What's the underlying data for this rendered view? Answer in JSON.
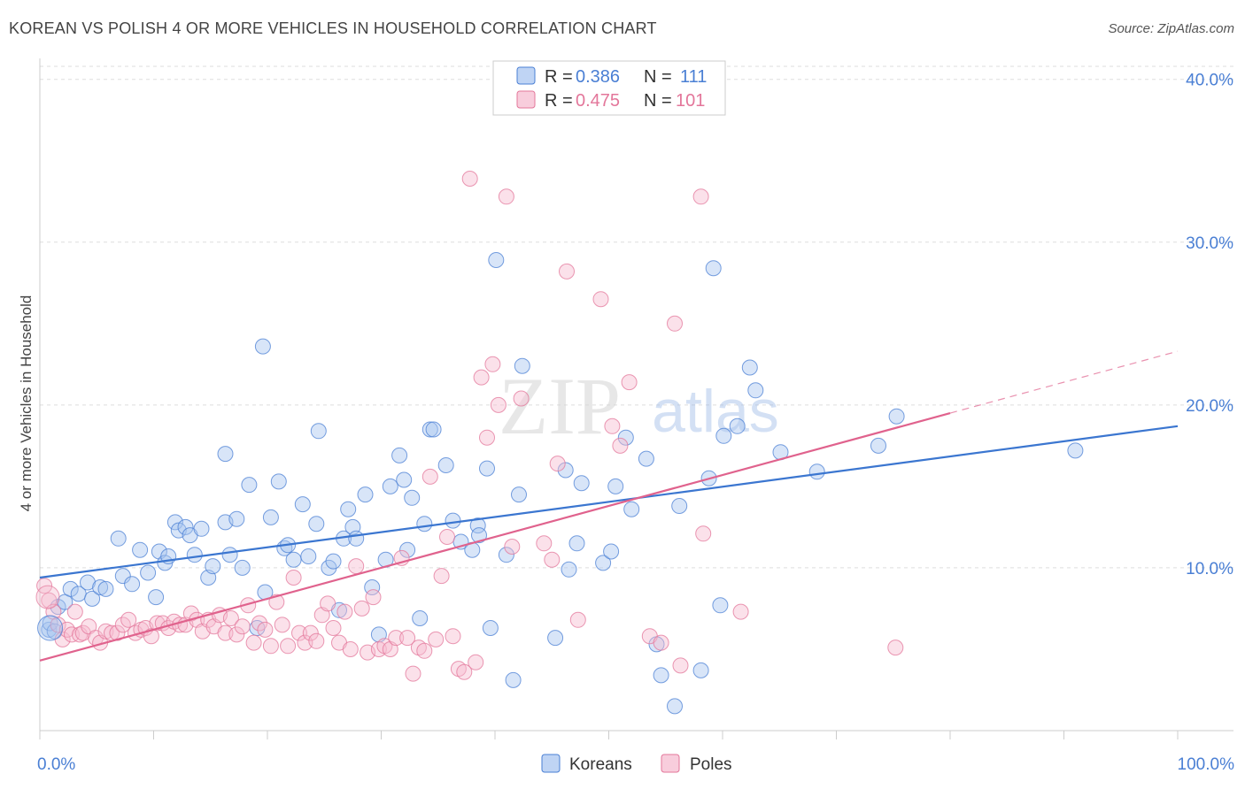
{
  "title": "KOREAN VS POLISH 4 OR MORE VEHICLES IN HOUSEHOLD CORRELATION CHART",
  "source": "Source: ZipAtlas.com",
  "watermark": {
    "zip": "ZIP",
    "atlas": "atlas"
  },
  "legend_stats": [
    {
      "r_label": "R = ",
      "r_value": "0.386",
      "n_label": "N = ",
      "n_value": "111",
      "color": "#4a7fd4"
    },
    {
      "r_label": "R = ",
      "r_value": "0.475",
      "n_label": "N = ",
      "n_value": "101",
      "color": "#e3769a"
    }
  ],
  "chart_data": {
    "type": "scatter",
    "title": "KOREAN VS POLISH 4 OR MORE VEHICLES IN HOUSEHOLD CORRELATION CHART",
    "xlabel": "",
    "ylabel": "4 or more Vehicles in Household",
    "xlim": [
      0,
      100
    ],
    "ylim": [
      0,
      40.8
    ],
    "x_tick_labels": [
      {
        "value": 0,
        "label": "0.0%"
      },
      {
        "value": 100,
        "label": "100.0%"
      }
    ],
    "y_tick_labels": [
      {
        "value": 10,
        "label": "10.0%"
      },
      {
        "value": 20,
        "label": "20.0%"
      },
      {
        "value": 30,
        "label": "30.0%"
      },
      {
        "value": 40,
        "label": "40.0%"
      }
    ],
    "grid": true,
    "legend_position": "bottom-center",
    "series": [
      {
        "name": "Koreans",
        "color": "#a9c6f0",
        "edge": "#4a7fd4",
        "line_color": "#3b76d0",
        "trend": {
          "x": [
            0,
            100
          ],
          "y": [
            9.4,
            18.7
          ]
        },
        "points": [
          [
            0.8,
            6.2
          ],
          [
            0.9,
            6.6
          ],
          [
            1.3,
            6.1
          ],
          [
            1.6,
            7.6
          ],
          [
            2.2,
            7.9
          ],
          [
            2.7,
            8.7
          ],
          [
            3.4,
            8.4
          ],
          [
            4.2,
            9.1
          ],
          [
            4.6,
            8.1
          ],
          [
            5.3,
            8.8
          ],
          [
            5.8,
            8.7
          ],
          [
            6.9,
            11.8
          ],
          [
            7.3,
            9.5
          ],
          [
            8.1,
            9.0
          ],
          [
            8.8,
            11.1
          ],
          [
            9.5,
            9.7
          ],
          [
            10.2,
            8.2
          ],
          [
            10.5,
            11.0
          ],
          [
            11.0,
            10.3
          ],
          [
            11.3,
            10.7
          ],
          [
            11.9,
            12.8
          ],
          [
            12.2,
            12.3
          ],
          [
            12.8,
            12.5
          ],
          [
            13.2,
            12.0
          ],
          [
            13.6,
            10.8
          ],
          [
            14.2,
            12.4
          ],
          [
            14.8,
            9.4
          ],
          [
            15.2,
            10.1
          ],
          [
            16.3,
            17.0
          ],
          [
            16.3,
            12.8
          ],
          [
            16.7,
            10.8
          ],
          [
            17.3,
            13.0
          ],
          [
            17.8,
            10.0
          ],
          [
            18.4,
            15.1
          ],
          [
            19.1,
            6.3
          ],
          [
            19.6,
            23.6
          ],
          [
            19.8,
            8.5
          ],
          [
            20.3,
            13.1
          ],
          [
            21.0,
            15.3
          ],
          [
            21.5,
            11.2
          ],
          [
            21.8,
            11.4
          ],
          [
            22.3,
            10.5
          ],
          [
            23.1,
            13.9
          ],
          [
            23.6,
            10.7
          ],
          [
            24.3,
            12.7
          ],
          [
            24.5,
            18.4
          ],
          [
            25.4,
            10.0
          ],
          [
            25.8,
            10.4
          ],
          [
            26.3,
            7.4
          ],
          [
            26.7,
            11.8
          ],
          [
            27.1,
            13.6
          ],
          [
            27.5,
            12.5
          ],
          [
            27.8,
            11.8
          ],
          [
            28.6,
            14.5
          ],
          [
            29.2,
            8.8
          ],
          [
            29.8,
            5.9
          ],
          [
            30.4,
            10.5
          ],
          [
            30.8,
            15.0
          ],
          [
            31.6,
            16.9
          ],
          [
            32.0,
            15.4
          ],
          [
            32.3,
            11.1
          ],
          [
            32.7,
            14.3
          ],
          [
            33.4,
            6.9
          ],
          [
            33.8,
            12.7
          ],
          [
            34.3,
            18.5
          ],
          [
            34.6,
            18.5
          ],
          [
            35.7,
            16.3
          ],
          [
            36.3,
            12.9
          ],
          [
            37.0,
            11.6
          ],
          [
            38.0,
            11.1
          ],
          [
            38.5,
            12.6
          ],
          [
            38.6,
            12.0
          ],
          [
            39.3,
            16.1
          ],
          [
            39.6,
            6.3
          ],
          [
            40.1,
            28.9
          ],
          [
            41.0,
            10.8
          ],
          [
            41.6,
            3.1
          ],
          [
            42.1,
            14.5
          ],
          [
            42.4,
            22.4
          ],
          [
            45.3,
            5.7
          ],
          [
            46.2,
            16.0
          ],
          [
            46.5,
            9.9
          ],
          [
            47.2,
            11.5
          ],
          [
            47.6,
            15.2
          ],
          [
            49.5,
            10.3
          ],
          [
            50.2,
            11.0
          ],
          [
            50.6,
            15.0
          ],
          [
            51.5,
            18.0
          ],
          [
            52.0,
            13.6
          ],
          [
            53.3,
            16.7
          ],
          [
            54.2,
            5.3
          ],
          [
            54.6,
            3.4
          ],
          [
            55.8,
            1.5
          ],
          [
            56.2,
            13.8
          ],
          [
            58.1,
            3.7
          ],
          [
            58.8,
            15.5
          ],
          [
            59.2,
            28.4
          ],
          [
            59.8,
            7.7
          ],
          [
            60.1,
            18.1
          ],
          [
            61.3,
            18.7
          ],
          [
            62.4,
            22.3
          ],
          [
            62.9,
            20.9
          ],
          [
            65.1,
            17.1
          ],
          [
            68.3,
            15.9
          ],
          [
            73.7,
            17.5
          ],
          [
            75.3,
            19.3
          ],
          [
            91.0,
            17.2
          ]
        ]
      },
      {
        "name": "Poles",
        "color": "#f6bcd0",
        "edge": "#e3769a",
        "line_color": "#e0628d",
        "trend": {
          "x": [
            0,
            80
          ],
          "y": [
            4.3,
            19.5
          ]
        },
        "trend_dashed": {
          "x": [
            80,
            100
          ],
          "y": [
            19.5,
            23.3
          ]
        },
        "points": [
          [
            0.4,
            8.9
          ],
          [
            0.8,
            8.0
          ],
          [
            1.2,
            7.3
          ],
          [
            1.6,
            6.5
          ],
          [
            2.0,
            5.6
          ],
          [
            2.4,
            6.2
          ],
          [
            2.8,
            5.9
          ],
          [
            3.1,
            7.3
          ],
          [
            3.5,
            5.9
          ],
          [
            3.8,
            6.0
          ],
          [
            4.3,
            6.4
          ],
          [
            4.9,
            5.7
          ],
          [
            5.3,
            5.4
          ],
          [
            5.8,
            6.1
          ],
          [
            6.3,
            6.0
          ],
          [
            6.8,
            6.0
          ],
          [
            7.3,
            6.5
          ],
          [
            7.8,
            6.8
          ],
          [
            8.4,
            6.0
          ],
          [
            8.9,
            6.2
          ],
          [
            9.3,
            6.3
          ],
          [
            9.8,
            5.8
          ],
          [
            10.3,
            6.6
          ],
          [
            10.8,
            6.6
          ],
          [
            11.3,
            6.3
          ],
          [
            11.8,
            6.7
          ],
          [
            12.3,
            6.5
          ],
          [
            12.8,
            6.5
          ],
          [
            13.3,
            7.2
          ],
          [
            13.8,
            6.8
          ],
          [
            14.3,
            6.1
          ],
          [
            14.8,
            6.8
          ],
          [
            15.3,
            6.4
          ],
          [
            15.8,
            7.1
          ],
          [
            16.3,
            6.0
          ],
          [
            16.8,
            6.9
          ],
          [
            17.3,
            5.9
          ],
          [
            17.8,
            6.4
          ],
          [
            18.3,
            7.7
          ],
          [
            18.8,
            5.4
          ],
          [
            19.3,
            6.6
          ],
          [
            19.8,
            6.2
          ],
          [
            20.3,
            5.2
          ],
          [
            20.8,
            7.9
          ],
          [
            21.3,
            6.5
          ],
          [
            21.8,
            5.2
          ],
          [
            22.3,
            9.4
          ],
          [
            22.8,
            6.0
          ],
          [
            23.3,
            5.4
          ],
          [
            23.8,
            6.0
          ],
          [
            24.3,
            5.5
          ],
          [
            24.8,
            7.1
          ],
          [
            25.3,
            7.8
          ],
          [
            25.8,
            6.3
          ],
          [
            26.3,
            5.4
          ],
          [
            26.8,
            7.3
          ],
          [
            27.3,
            5.0
          ],
          [
            27.8,
            10.1
          ],
          [
            28.3,
            7.5
          ],
          [
            28.8,
            4.8
          ],
          [
            29.3,
            8.2
          ],
          [
            29.8,
            5.0
          ],
          [
            30.3,
            5.2
          ],
          [
            30.8,
            5.0
          ],
          [
            31.3,
            5.7
          ],
          [
            31.8,
            10.6
          ],
          [
            32.3,
            5.7
          ],
          [
            32.8,
            3.5
          ],
          [
            33.3,
            5.1
          ],
          [
            33.8,
            4.9
          ],
          [
            34.3,
            15.6
          ],
          [
            34.8,
            5.6
          ],
          [
            35.3,
            9.5
          ],
          [
            35.8,
            11.9
          ],
          [
            36.3,
            5.8
          ],
          [
            36.8,
            3.8
          ],
          [
            37.3,
            3.6
          ],
          [
            37.8,
            33.9
          ],
          [
            38.3,
            4.2
          ],
          [
            38.8,
            21.7
          ],
          [
            39.3,
            18.0
          ],
          [
            39.8,
            22.5
          ],
          [
            40.3,
            20.0
          ],
          [
            41.0,
            32.8
          ],
          [
            41.5,
            11.3
          ],
          [
            42.3,
            20.4
          ],
          [
            44.3,
            11.5
          ],
          [
            45.0,
            10.5
          ],
          [
            45.5,
            16.4
          ],
          [
            46.3,
            28.2
          ],
          [
            47.3,
            6.8
          ],
          [
            49.3,
            26.5
          ],
          [
            50.3,
            18.7
          ],
          [
            51.0,
            17.5
          ],
          [
            51.8,
            21.4
          ],
          [
            53.6,
            5.8
          ],
          [
            54.6,
            5.4
          ],
          [
            55.8,
            25.0
          ],
          [
            56.3,
            4.0
          ],
          [
            58.1,
            32.8
          ],
          [
            58.3,
            12.1
          ],
          [
            61.6,
            7.3
          ],
          [
            75.2,
            5.1
          ]
        ]
      }
    ]
  }
}
